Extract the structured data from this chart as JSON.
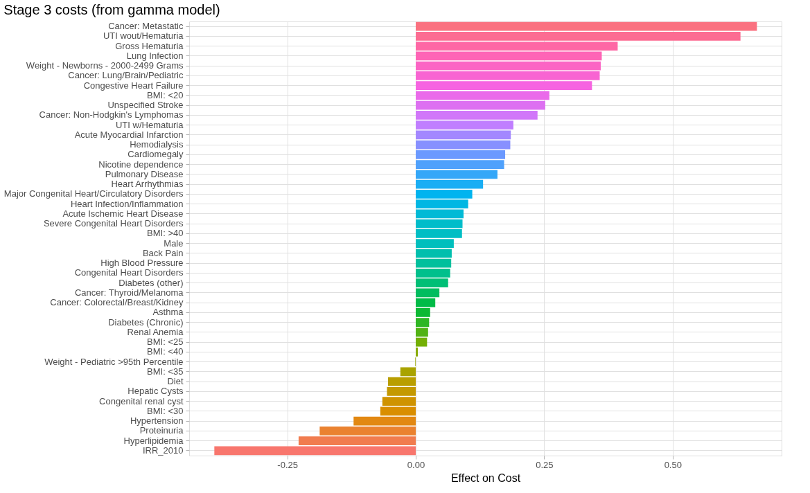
{
  "chart_data": {
    "type": "bar",
    "orientation": "horizontal",
    "title": "Stage 3 costs (from gamma model)",
    "xlabel": "Effect on Cost",
    "categories": [
      "Cancer: Metastatic",
      "UTI wout/Hematuria",
      "Gross Hematuria",
      "Lung Infection",
      "Weight - Newborns - 2000-2499 Grams",
      "Cancer: Lung/Brain/Pediatric",
      "Congestive Heart Failure",
      "BMI: <20",
      "Unspecified Stroke",
      "Cancer: Non-Hodgkin's Lymphomas",
      "UTI w/Hematuria",
      "Acute Myocardial Infarction",
      "Hemodialysis",
      "Cardiomegaly",
      "Nicotine dependence",
      "Pulmonary Disease",
      "Heart Arrhythmias",
      "Major Congenital Heart/Circulatory Disorders",
      "Heart Infection/Inflammation",
      "Acute Ischemic Heart Disease",
      "Severe Congenital Heart Disorders",
      "BMI: >40",
      "Male",
      "Back Pain",
      "High Blood Pressure",
      "Congenital Heart Disorders",
      "Diabetes (other)",
      "Cancer: Thyroid/Melanoma",
      "Cancer: Colorectal/Breast/Kidney",
      "Asthma",
      "Diabetes (Chronic)",
      "Renal Anemia",
      "BMI: <25",
      "BMI: <40",
      "Weight - Pediatric >95th Percentile",
      "BMI: <35",
      "Diet",
      "Hepatic Cysts",
      "Congenital renal cyst",
      "BMI: <30",
      "Hypertension",
      "Proteinuria",
      "Hyperlipidemia",
      "IRR_2010"
    ],
    "values": [
      0.664,
      0.632,
      0.393,
      0.362,
      0.36,
      0.358,
      0.343,
      0.26,
      0.252,
      0.237,
      0.19,
      0.185,
      0.184,
      0.174,
      0.172,
      0.159,
      0.131,
      0.11,
      0.102,
      0.093,
      0.091,
      0.09,
      0.074,
      0.07,
      0.069,
      0.067,
      0.063,
      0.046,
      0.038,
      0.028,
      0.026,
      0.024,
      0.022,
      0.004,
      -0.001,
      -0.03,
      -0.054,
      -0.056,
      -0.065,
      -0.069,
      -0.121,
      -0.187,
      -0.228,
      -0.392
    ],
    "colors": [
      "#FA7180",
      "#FC6C92",
      "#FE67A5",
      "#FE64B6",
      "#FB64C4",
      "#F864D2",
      "#F664E1",
      "#EA6AEA",
      "#DD70F1",
      "#D177F9",
      "#C07EFF",
      "#A387FF",
      "#8790FF",
      "#6B99FF",
      "#4FA1FC",
      "#34A7F8",
      "#19AEF4",
      "#00B4EF",
      "#00B7E3",
      "#00BAD6",
      "#00BDCA",
      "#00BEC4",
      "#00BFBD",
      "#00BFAD",
      "#00C09D",
      "#00C08C",
      "#00BF76",
      "#00BD5F",
      "#00BB47",
      "#0CB933",
      "#2EB623",
      "#51B214",
      "#73AF04",
      "#88AB00",
      "#99A700",
      "#A9A300",
      "#B99E00",
      "#C49900",
      "#CF9300",
      "#D98E00",
      "#E28812",
      "#EA8230",
      "#F17C4F",
      "#F8766D"
    ],
    "xlim": [
      -0.441,
      0.712
    ],
    "xticks": [
      {
        "value": -0.25,
        "label": "-0.25"
      },
      {
        "value": 0,
        "label": "0.00"
      },
      {
        "value": 0.25,
        "label": "0.25"
      },
      {
        "value": 0.5,
        "label": "0.50"
      }
    ],
    "grid": true
  }
}
